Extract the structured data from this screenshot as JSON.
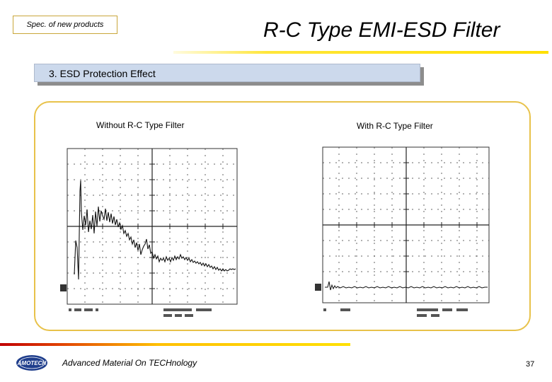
{
  "header": {
    "tag": "Spec. of new products",
    "title": "R-C Type EMI-ESD Filter"
  },
  "section": {
    "title": "3. ESD Protection Effect"
  },
  "panels": [
    {
      "caption": "Without R-C Type Filter"
    },
    {
      "caption": "With R-C Type Filter"
    }
  ],
  "footer": {
    "logo_text": "AMOTECH",
    "company": "Advanced Material On TECHnology",
    "page": "37"
  },
  "colors": {
    "accent_gold": "#e8c24a",
    "section_band": "#ccd9ec",
    "rule_red": "#c00000",
    "rule_yellow": "#ffe000",
    "logo_blue": "#1f3e8c"
  }
}
